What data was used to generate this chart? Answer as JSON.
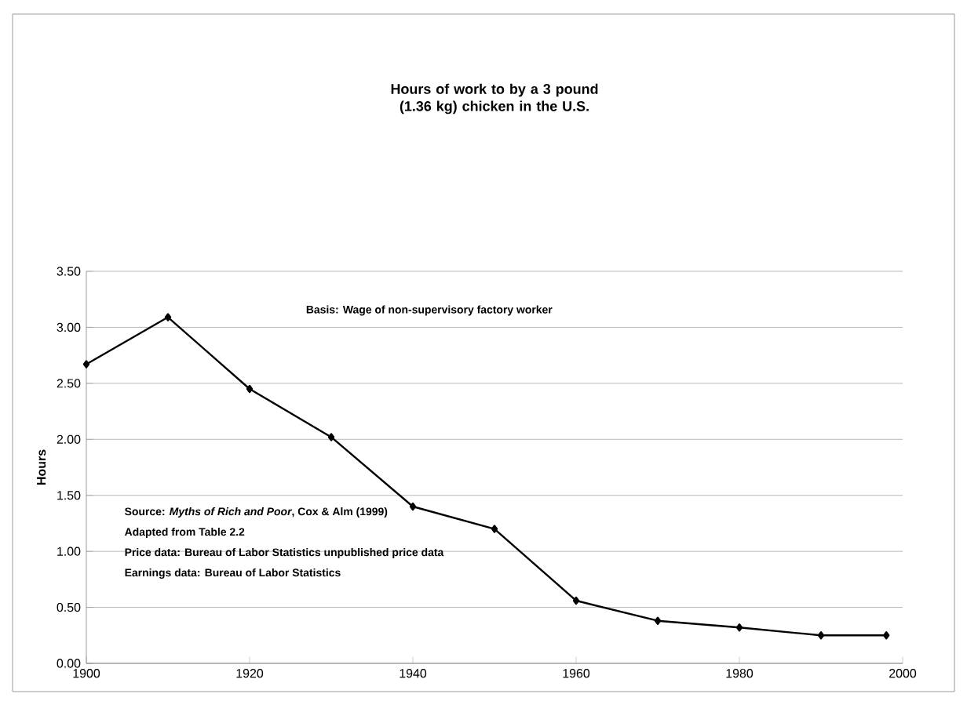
{
  "chart_data": {
    "type": "line",
    "title": "Hours of work to by a 3 pound (1.36 kg) chicken in the U.S.",
    "ylabel": "Hours",
    "annotations": [
      "Basis:  Wage of non-supervisory factory worker",
      "Source: *Myths of Rich and Poor*, Cox & Alm (1999)",
      "Adapted from Table 2.2",
      "Price data: Bureau of Labor Statistics unpublished price data",
      "Earnings data: Bureau of Labor Statistics"
    ],
    "x": [
      1900,
      1910,
      1920,
      1930,
      1940,
      1950,
      1960,
      1970,
      1980,
      1990,
      1998
    ],
    "series": [
      {
        "color": "#000000",
        "values": [
          2.67,
          3.09,
          2.45,
          2.02,
          1.4,
          1.2,
          0.56,
          0.38,
          0.32,
          0.25,
          0.25
        ]
      }
    ],
    "xlim": [
      1900,
      2000
    ],
    "xticks": [
      1900,
      1920,
      1940,
      1960,
      1980,
      2000
    ],
    "ylim": [
      0,
      3.5
    ],
    "yticks": [
      {
        "value": 0,
        "label": "0.00"
      },
      {
        "value": 0.5,
        "label": "0.50"
      },
      {
        "value": 1,
        "label": "1.00"
      },
      {
        "value": 1.5,
        "label": "1.50"
      },
      {
        "value": 2,
        "label": "2.00"
      },
      {
        "value": 2.5,
        "label": "2.50"
      },
      {
        "value": 3,
        "label": "3.00"
      },
      {
        "value": 3.5,
        "label": "3.50"
      }
    ],
    "grid": "y",
    "marker": "diamond",
    "line_style": "solid"
  }
}
